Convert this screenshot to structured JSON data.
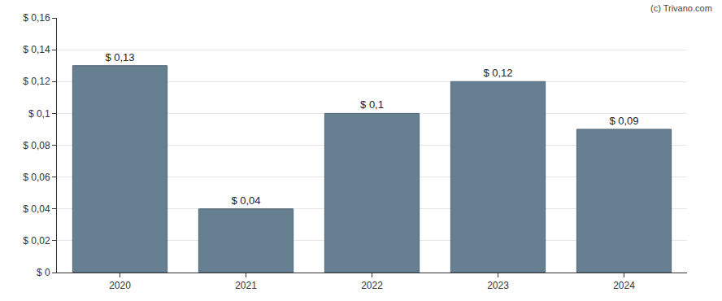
{
  "chart_data": {
    "type": "bar",
    "categories": [
      "2020",
      "2021",
      "2022",
      "2023",
      "2024"
    ],
    "values": [
      0.13,
      0.04,
      0.1,
      0.12,
      0.09
    ],
    "value_labels": [
      "$ 0,13",
      "$ 0,04",
      "$ 0,1",
      "$ 0,12",
      "$ 0,09"
    ],
    "data_labels": true,
    "color": "#667f91",
    "ylim": [
      0,
      0.16
    ],
    "yticks": [
      {
        "value": 0,
        "label": "$ 0"
      },
      {
        "value": 0.02,
        "label": "$ 0,02"
      },
      {
        "value": 0.04,
        "label": "$ 0,04"
      },
      {
        "value": 0.06,
        "label": "$ 0,06"
      },
      {
        "value": 0.08,
        "label": "$ 0,08"
      },
      {
        "value": 0.1,
        "label": "$ 0,1"
      },
      {
        "value": 0.12,
        "label": "$ 0,12"
      },
      {
        "value": 0.14,
        "label": "$ 0,14"
      },
      {
        "value": 0.16,
        "label": "$ 0,16"
      }
    ],
    "grid": true,
    "annotations": [
      "(c) Trivano.com"
    ]
  }
}
